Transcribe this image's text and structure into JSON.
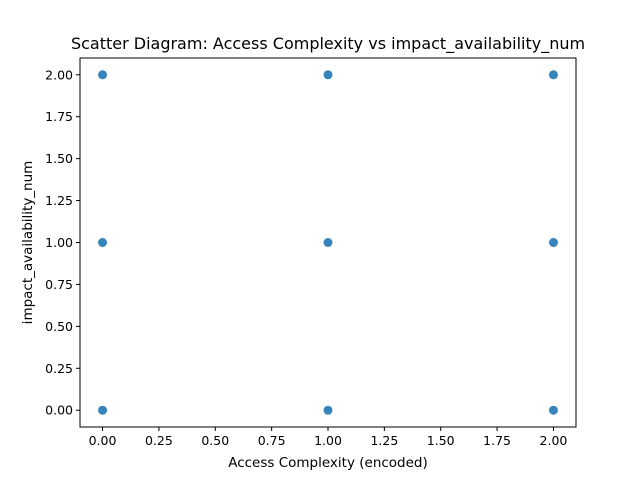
{
  "chart_data": {
    "type": "scatter",
    "title": "Scatter Diagram: Access Complexity vs impact_availability_num",
    "xlabel": "Access Complexity (encoded)",
    "ylabel": "impact_availability_num",
    "xlim": [
      -0.1,
      2.1
    ],
    "ylim": [
      -0.1,
      2.1
    ],
    "xticks": [
      0.0,
      0.25,
      0.5,
      0.75,
      1.0,
      1.25,
      1.5,
      1.75,
      2.0
    ],
    "yticks": [
      0.0,
      0.25,
      0.5,
      0.75,
      1.0,
      1.25,
      1.5,
      1.75,
      2.0
    ],
    "xtick_labels": [
      "0.00",
      "0.25",
      "0.50",
      "0.75",
      "1.00",
      "1.25",
      "1.50",
      "1.75",
      "2.00"
    ],
    "ytick_labels": [
      "0.00",
      "0.25",
      "0.50",
      "0.75",
      "1.00",
      "1.25",
      "1.50",
      "1.75",
      "2.00"
    ],
    "grid": false,
    "color": "#1f77b4",
    "points": [
      {
        "x": 0,
        "y": 0
      },
      {
        "x": 0,
        "y": 1
      },
      {
        "x": 0,
        "y": 2
      },
      {
        "x": 1,
        "y": 0
      },
      {
        "x": 1,
        "y": 1
      },
      {
        "x": 1,
        "y": 2
      },
      {
        "x": 2,
        "y": 0
      },
      {
        "x": 2,
        "y": 1
      },
      {
        "x": 2,
        "y": 2
      }
    ]
  }
}
